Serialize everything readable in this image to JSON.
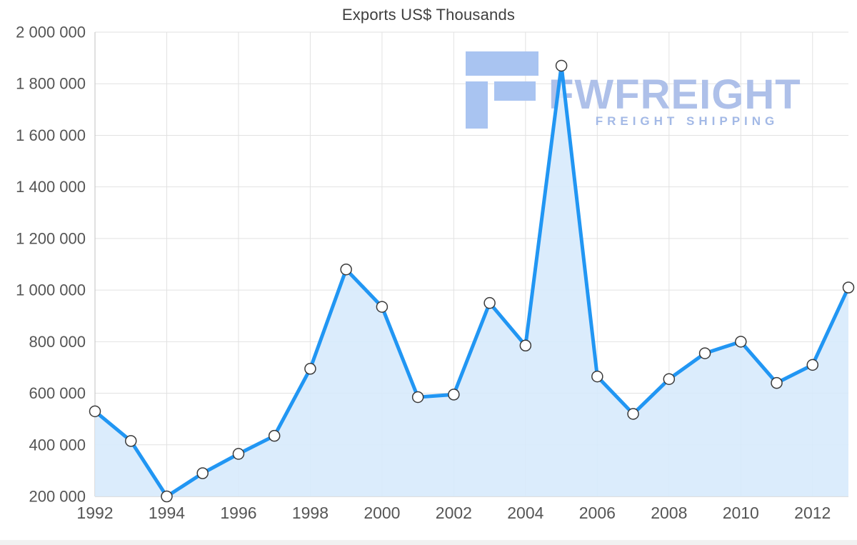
{
  "watermark": {
    "brand": "FWFREIGHT",
    "tagline": "FREIGHT SHIPPING",
    "logo_color": "#a9c4f1",
    "brand_color": "#aec0e9",
    "tagline_color": "#a3b9e6"
  },
  "chart_data": {
    "type": "area",
    "title": "Exports US$ Thousands",
    "xlabel": "",
    "ylabel": "",
    "x": [
      1992,
      1993,
      1994,
      1995,
      1996,
      1997,
      1998,
      1999,
      2000,
      2001,
      2002,
      2003,
      2004,
      2005,
      2006,
      2007,
      2008,
      2009,
      2010,
      2011,
      2012,
      2013
    ],
    "values": [
      530000,
      415000,
      200000,
      290000,
      365000,
      435000,
      695000,
      1080000,
      935000,
      585000,
      595000,
      950000,
      785000,
      1870000,
      665000,
      520000,
      655000,
      755000,
      800000,
      640000,
      710000,
      1010000
    ],
    "ylim": [
      200000,
      2000000
    ],
    "ytick_step": 200000,
    "xtick_step": 2,
    "grid": true,
    "legend_position": "none",
    "line_color": "#2196f3",
    "area_color": "#d7eafc",
    "marker_fill": "#ffffff",
    "marker_stroke": "#3a3a3a",
    "grid_color": "#e2e2e2",
    "axis_line_color": "#c2c2c2",
    "tick_text_color": "#555555"
  }
}
